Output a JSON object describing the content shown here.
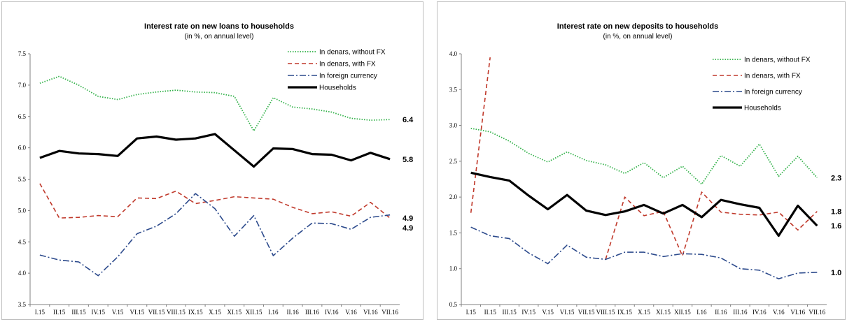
{
  "chart_data": [
    {
      "type": "line",
      "title": "Interest rate on new loans to households",
      "subtitle": "(in %, on annual level)",
      "categories": [
        "I.15",
        "II.15",
        "III.15",
        "IV.15",
        "V.15",
        "VI.15",
        "VII.15",
        "VIII.15",
        "IX.15",
        "X.15",
        "XI.15",
        "XII.15",
        "I.16",
        "II.16",
        "III.16",
        "IV.16",
        "V.16",
        "VI.16",
        "VII.16"
      ],
      "ylim": [
        3.5,
        7.5
      ],
      "yticks": [
        "3.5",
        "4.0",
        "4.5",
        "5.0",
        "5.5",
        "6.0",
        "6.5",
        "7.0",
        "7.5"
      ],
      "legend_position": "top-right",
      "series": [
        {
          "name": "In denars, without FX",
          "style": "dotted",
          "color": "#33b24a",
          "values": [
            7.03,
            7.14,
            7.0,
            6.82,
            6.77,
            6.85,
            6.89,
            6.92,
            6.89,
            6.88,
            6.82,
            6.27,
            6.8,
            6.65,
            6.62,
            6.57,
            6.47,
            6.44,
            6.45
          ],
          "end_label": "6.4"
        },
        {
          "name": "In denars, with FX",
          "style": "dashed",
          "color": "#c0392b",
          "values": [
            5.43,
            4.88,
            4.89,
            4.92,
            4.9,
            5.2,
            5.19,
            5.31,
            5.11,
            5.16,
            5.22,
            5.2,
            5.18,
            5.05,
            4.95,
            4.98,
            4.91,
            5.13,
            4.88
          ],
          "end_label": "4.9"
        },
        {
          "name": "In foreign currency",
          "style": "dashdot",
          "color": "#2c4a8c",
          "values": [
            4.29,
            4.21,
            4.18,
            3.96,
            4.26,
            4.63,
            4.75,
            4.95,
            5.27,
            5.03,
            4.59,
            4.92,
            4.28,
            4.56,
            4.8,
            4.79,
            4.7,
            4.89,
            4.93
          ],
          "end_label": "4.9"
        },
        {
          "name": "Households",
          "style": "solid",
          "color": "#000000",
          "values": [
            5.84,
            5.95,
            5.91,
            5.9,
            5.87,
            6.15,
            6.18,
            6.13,
            6.15,
            6.22,
            5.96,
            5.7,
            5.99,
            5.98,
            5.9,
            5.89,
            5.8,
            5.92,
            5.82
          ],
          "end_label": "5.8"
        }
      ]
    },
    {
      "type": "line",
      "title": "Interest rate on new deposits to households",
      "subtitle": "(in %, on annual level)",
      "categories": [
        "I.15",
        "II.15",
        "III.15",
        "IV.15",
        "V.15",
        "VI.15",
        "VII.15",
        "VIII.15",
        "IX.15",
        "X.15",
        "XI.15",
        "XII.15",
        "I.16",
        "II.16",
        "III.16",
        "IV.16",
        "V.16",
        "VI.16",
        "VII.16"
      ],
      "ylim": [
        0.5,
        4.0
      ],
      "yticks": [
        "0.5",
        "1.0",
        "1.5",
        "2.0",
        "2.5",
        "3.0",
        "3.5",
        "4.0"
      ],
      "legend_position": "top-right",
      "series": [
        {
          "name": "In denars, without FX",
          "style": "dotted",
          "color": "#33b24a",
          "values": [
            2.96,
            2.91,
            2.78,
            2.61,
            2.49,
            2.63,
            2.51,
            2.45,
            2.33,
            2.48,
            2.27,
            2.43,
            2.18,
            2.58,
            2.43,
            2.74,
            2.29,
            2.57,
            2.27
          ],
          "end_label": "2.3"
        },
        {
          "name": "In denars, with FX",
          "style": "dashed",
          "color": "#c0392b",
          "values": [
            1.78,
            3.95,
            null,
            null,
            null,
            null,
            null,
            1.13,
            2.0,
            1.74,
            1.8,
            1.18,
            2.07,
            1.79,
            1.76,
            1.75,
            1.79,
            1.54,
            1.8
          ],
          "end_label": "1.8"
        },
        {
          "name": "In foreign currency",
          "style": "dashdot",
          "color": "#2c4a8c",
          "values": [
            1.58,
            1.46,
            1.42,
            1.22,
            1.07,
            1.33,
            1.16,
            1.13,
            1.23,
            1.23,
            1.17,
            1.21,
            1.2,
            1.15,
            1.0,
            0.98,
            0.86,
            0.94,
            0.95
          ],
          "end_label": "1.0"
        },
        {
          "name": "Households",
          "style": "solid",
          "color": "#000000",
          "values": [
            2.34,
            2.28,
            2.23,
            2.02,
            1.83,
            2.03,
            1.81,
            1.75,
            1.8,
            1.89,
            1.77,
            1.89,
            1.72,
            1.96,
            1.9,
            1.85,
            1.46,
            1.88,
            1.6
          ],
          "end_label": "1.6"
        }
      ]
    }
  ]
}
